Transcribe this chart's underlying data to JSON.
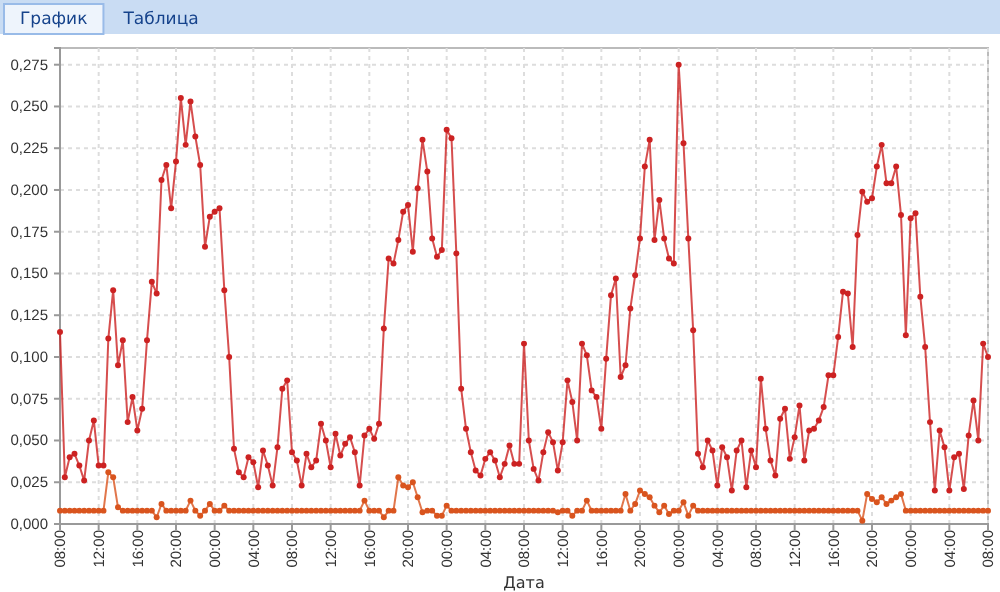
{
  "chart_data": {
    "type": "line",
    "xlabel": "Дата",
    "annotations": [
      "График",
      "Таблица"
    ],
    "categories": [
      "08:00",
      null,
      null,
      null,
      null,
      null,
      null,
      null,
      "12:00",
      null,
      null,
      null,
      null,
      null,
      null,
      null,
      "16:00",
      null,
      null,
      null,
      null,
      null,
      null,
      null,
      "20:00",
      null,
      null,
      null,
      null,
      null,
      null,
      null,
      "00:00",
      null,
      null,
      null,
      null,
      null,
      null,
      null,
      "04:00",
      null,
      null,
      null,
      null,
      null,
      null,
      null,
      "08:00",
      null,
      null,
      null,
      null,
      null,
      null,
      null,
      "12:00",
      null,
      null,
      null,
      null,
      null,
      null,
      null,
      "16:00",
      null,
      null,
      null,
      null,
      null,
      null,
      null,
      "20:00",
      null,
      null,
      null,
      null,
      null,
      null,
      null,
      "00:00",
      null,
      null,
      null,
      null,
      null,
      null,
      null,
      "04:00",
      null,
      null,
      null,
      null,
      null,
      null,
      null,
      "08:00",
      null,
      null,
      null,
      null,
      null,
      null,
      null,
      "12:00",
      null,
      null,
      null,
      null,
      null,
      null,
      null,
      "16:00",
      null,
      null,
      null,
      null,
      null,
      null,
      null,
      "20:00",
      null,
      null,
      null,
      null,
      null,
      null,
      null,
      "00:00",
      null,
      null,
      null,
      null,
      null,
      null,
      null,
      "04:00",
      null,
      null,
      null,
      null,
      null,
      null,
      null,
      "08:00",
      null,
      null,
      null,
      null,
      null,
      null,
      null,
      "12:00",
      null,
      null,
      null,
      null,
      null,
      null,
      null,
      "16:00",
      null,
      null,
      null,
      null,
      null,
      null,
      null,
      "20:00",
      null,
      null,
      null,
      null,
      null,
      null,
      null,
      "00:00",
      null,
      null,
      null,
      null,
      null,
      null,
      null,
      "04:00",
      null,
      null,
      null,
      null,
      null,
      null,
      null,
      "08:00"
    ],
    "series": [
      {
        "color": "#cc2222",
        "values": [
          0.115,
          0.028,
          0.04,
          0.042,
          0.035,
          0.026,
          0.05,
          0.062,
          0.035,
          0.035,
          0.111,
          0.14,
          0.095,
          0.11,
          0.061,
          0.076,
          0.056,
          0.069,
          0.11,
          0.145,
          0.138,
          0.206,
          0.215,
          0.189,
          0.217,
          0.255,
          0.227,
          0.253,
          0.232,
          0.215,
          0.166,
          0.184,
          0.187,
          0.189,
          0.14,
          0.1,
          0.045,
          0.031,
          0.028,
          0.04,
          0.037,
          0.022,
          0.044,
          0.035,
          0.023,
          0.046,
          0.081,
          0.086,
          0.043,
          0.038,
          0.023,
          0.042,
          0.034,
          0.038,
          0.06,
          0.05,
          0.034,
          0.054,
          0.041,
          0.048,
          0.052,
          0.043,
          0.023,
          0.053,
          0.057,
          0.051,
          0.06,
          0.117,
          0.159,
          0.156,
          0.17,
          0.187,
          0.191,
          0.163,
          0.201,
          0.23,
          0.211,
          0.171,
          0.16,
          0.164,
          0.236,
          0.231,
          0.162,
          0.081,
          0.057,
          0.043,
          0.032,
          0.029,
          0.039,
          0.043,
          0.038,
          0.028,
          0.036,
          0.047,
          0.036,
          0.036,
          0.108,
          0.05,
          0.033,
          0.026,
          0.043,
          0.055,
          0.049,
          0.032,
          0.049,
          0.086,
          0.073,
          0.05,
          0.108,
          0.101,
          0.08,
          0.076,
          0.057,
          0.099,
          0.137,
          0.147,
          0.088,
          0.095,
          0.129,
          0.149,
          0.171,
          0.214,
          0.23,
          0.17,
          0.194,
          0.171,
          0.159,
          0.156,
          0.275,
          0.228,
          0.171,
          0.116,
          0.042,
          0.034,
          0.05,
          0.044,
          0.023,
          0.046,
          0.04,
          0.02,
          0.044,
          0.05,
          0.022,
          0.044,
          0.034,
          0.087,
          0.057,
          0.038,
          0.029,
          0.063,
          0.069,
          0.039,
          0.052,
          0.071,
          0.038,
          0.056,
          0.057,
          0.062,
          0.07,
          0.089,
          0.089,
          0.112,
          0.139,
          0.138,
          0.106,
          0.173,
          0.199,
          0.193,
          0.195,
          0.214,
          0.227,
          0.204,
          0.204,
          0.214,
          0.185,
          0.113,
          0.183,
          0.186,
          0.136,
          0.106,
          0.061,
          0.02,
          0.056,
          0.046,
          0.02,
          0.04,
          0.042,
          0.021,
          0.053,
          0.074,
          0.05,
          0.108,
          0.1
        ]
      },
      {
        "color": "#d9541e",
        "values": [
          0.008,
          0.008,
          0.008,
          0.008,
          0.008,
          0.008,
          0.008,
          0.008,
          0.008,
          0.008,
          0.031,
          0.028,
          0.01,
          0.008,
          0.008,
          0.008,
          0.008,
          0.008,
          0.008,
          0.008,
          0.004,
          0.012,
          0.008,
          0.008,
          0.008,
          0.008,
          0.008,
          0.014,
          0.008,
          0.005,
          0.008,
          0.012,
          0.008,
          0.008,
          0.011,
          0.008,
          0.008,
          0.008,
          0.008,
          0.008,
          0.008,
          0.008,
          0.008,
          0.008,
          0.008,
          0.008,
          0.008,
          0.008,
          0.008,
          0.008,
          0.008,
          0.008,
          0.008,
          0.008,
          0.008,
          0.008,
          0.008,
          0.008,
          0.008,
          0.008,
          0.008,
          0.008,
          0.008,
          0.014,
          0.008,
          0.008,
          0.008,
          0.004,
          0.008,
          0.008,
          0.028,
          0.023,
          0.022,
          0.025,
          0.016,
          0.007,
          0.008,
          0.008,
          0.005,
          0.005,
          0.011,
          0.008,
          0.008,
          0.008,
          0.008,
          0.008,
          0.008,
          0.008,
          0.008,
          0.008,
          0.008,
          0.008,
          0.008,
          0.008,
          0.008,
          0.008,
          0.008,
          0.008,
          0.008,
          0.008,
          0.008,
          0.008,
          0.008,
          0.007,
          0.008,
          0.008,
          0.005,
          0.008,
          0.008,
          0.014,
          0.008,
          0.008,
          0.008,
          0.008,
          0.008,
          0.008,
          0.008,
          0.018,
          0.008,
          0.012,
          0.02,
          0.018,
          0.016,
          0.011,
          0.007,
          0.011,
          0.006,
          0.008,
          0.008,
          0.013,
          0.005,
          0.011,
          0.008,
          0.008,
          0.008,
          0.008,
          0.008,
          0.008,
          0.008,
          0.008,
          0.008,
          0.008,
          0.008,
          0.008,
          0.008,
          0.008,
          0.008,
          0.008,
          0.008,
          0.008,
          0.008,
          0.008,
          0.008,
          0.008,
          0.008,
          0.008,
          0.008,
          0.008,
          0.008,
          0.008,
          0.008,
          0.008,
          0.008,
          0.008,
          0.008,
          0.008,
          0.002,
          0.018,
          0.015,
          0.013,
          0.016,
          0.012,
          0.014,
          0.016,
          0.018,
          0.008,
          0.008,
          0.008,
          0.008,
          0.008,
          0.008,
          0.008,
          0.008,
          0.008,
          0.008,
          0.008,
          0.008,
          0.008,
          0.008,
          0.008,
          0.008,
          0.008,
          0.008
        ]
      }
    ],
    "ylim": [
      0,
      0.285
    ],
    "yticks": [
      {
        "value": 0,
        "label": "0,000"
      },
      {
        "value": 0.025,
        "label": "0,025"
      },
      {
        "value": 0.05,
        "label": "0,050"
      },
      {
        "value": 0.075,
        "label": "0,075"
      },
      {
        "value": 0.1,
        "label": "0,100"
      },
      {
        "value": 0.125,
        "label": "0,125"
      },
      {
        "value": 0.15,
        "label": "0,150"
      },
      {
        "value": 0.175,
        "label": "0,175"
      },
      {
        "value": 0.2,
        "label": "0,200"
      },
      {
        "value": 0.225,
        "label": "0,225"
      },
      {
        "value": 0.25,
        "label": "0,250"
      },
      {
        "value": 0.275,
        "label": "0,275"
      }
    ],
    "grid": true,
    "marker": "circle"
  }
}
